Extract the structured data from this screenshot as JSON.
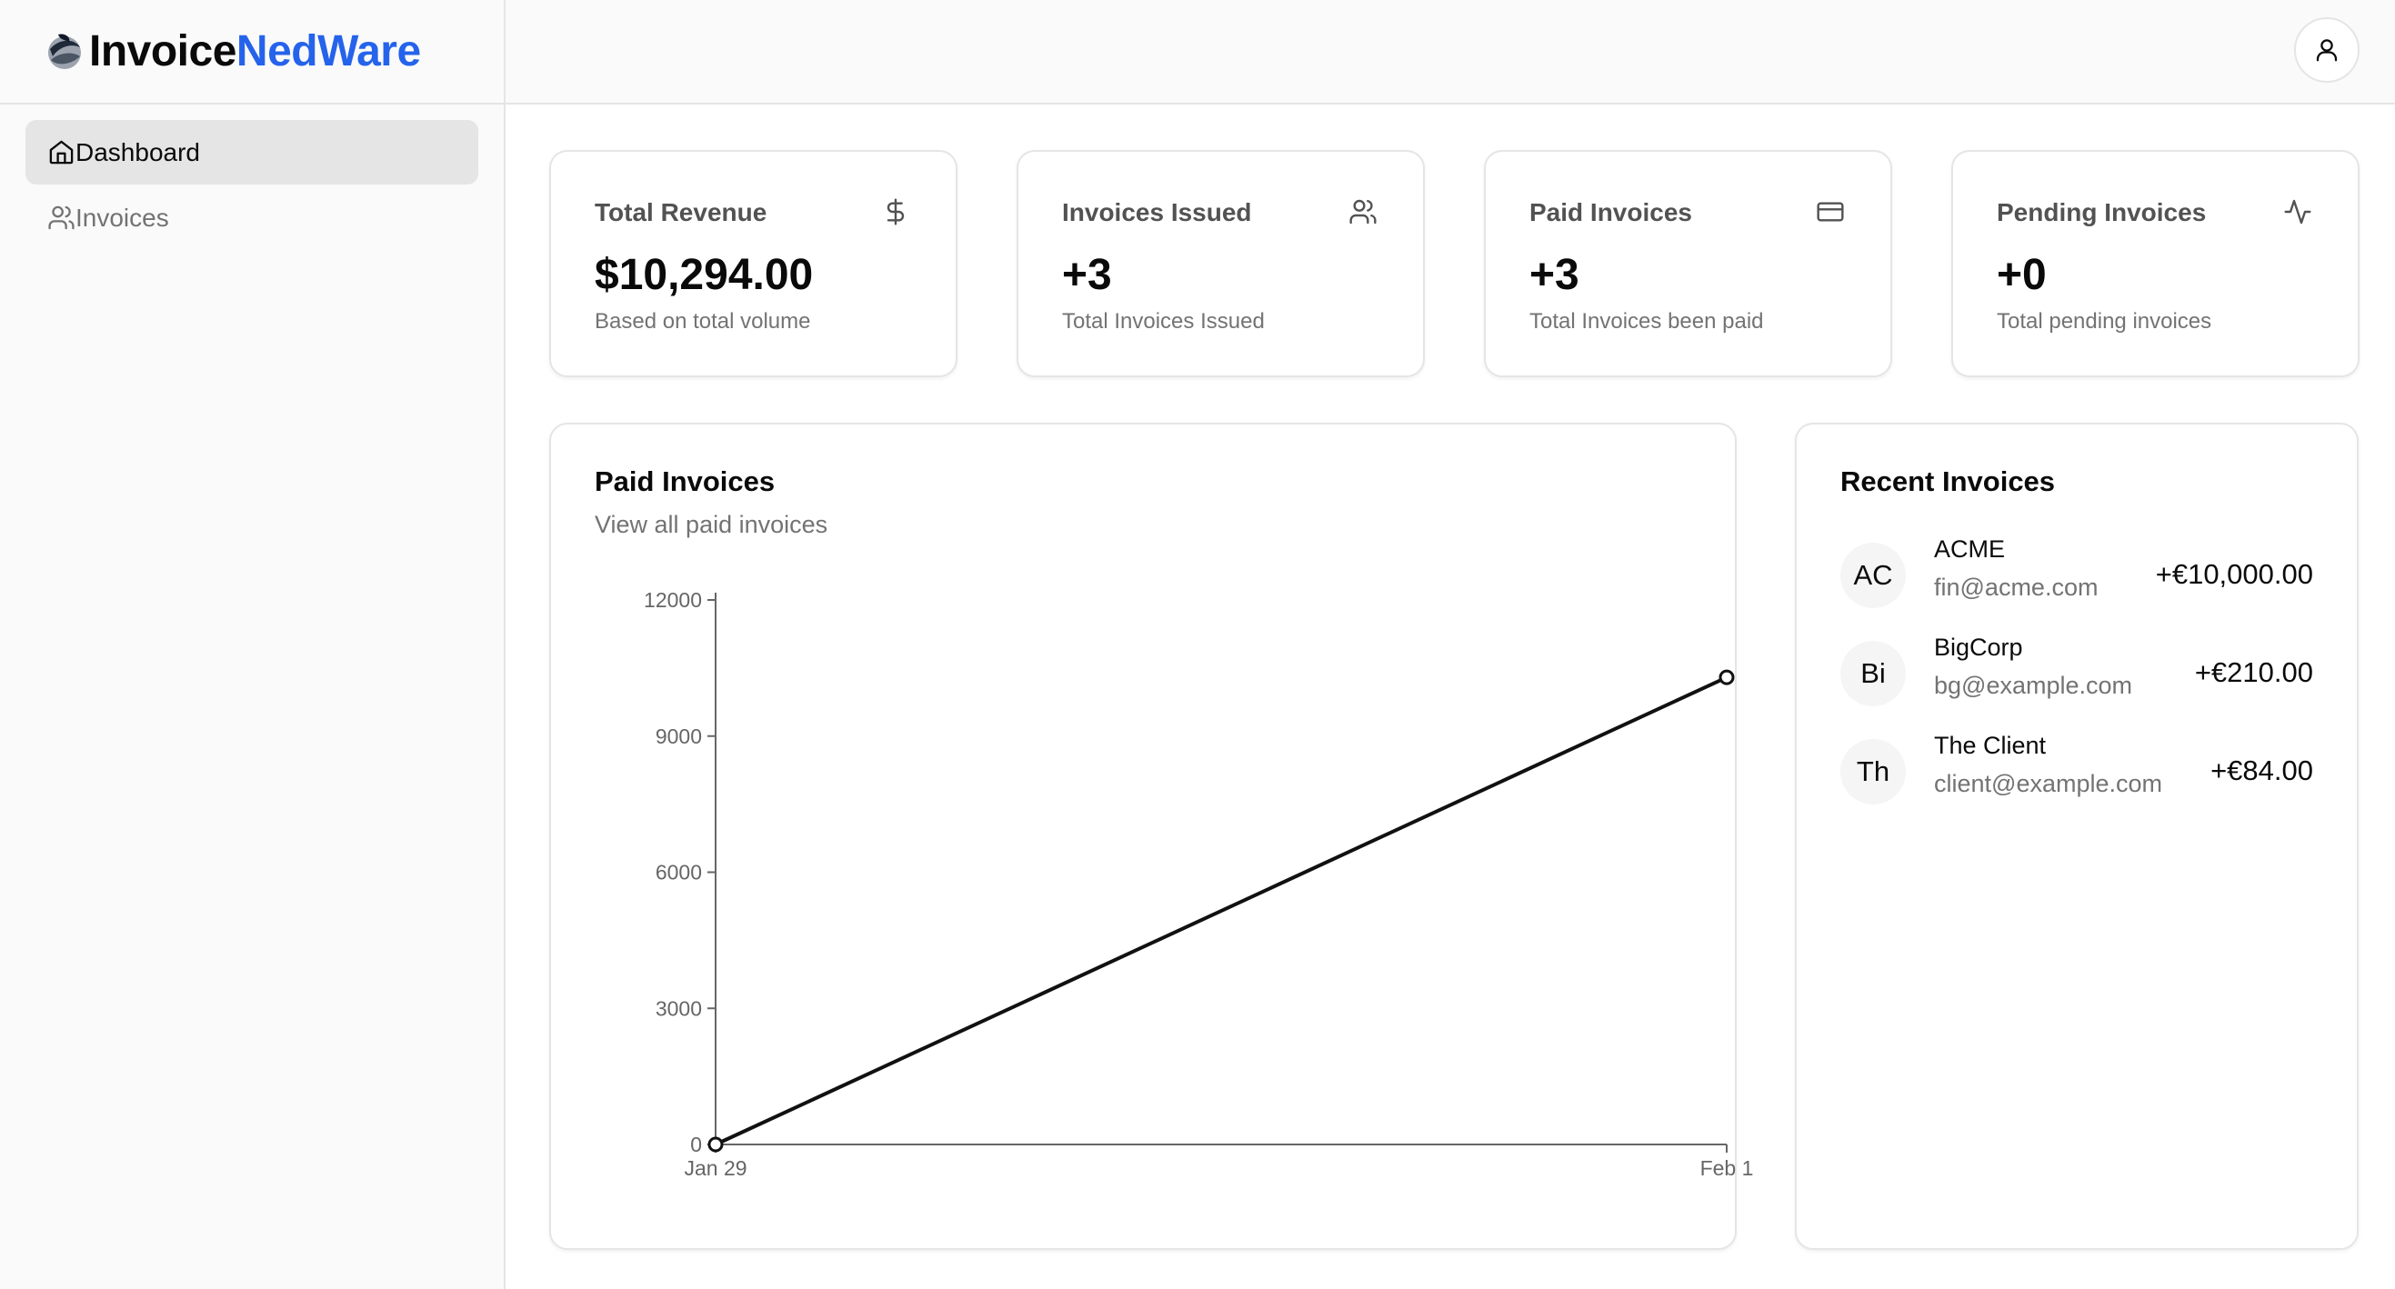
{
  "brand": {
    "name_main": "Invoice",
    "name_accent": "NedWare",
    "accent_color": "#2563eb"
  },
  "sidebar": {
    "items": [
      {
        "label": "Dashboard",
        "icon": "home-icon",
        "active": true
      },
      {
        "label": "Invoices",
        "icon": "users-icon",
        "active": false
      }
    ]
  },
  "header": {
    "user_icon": "user-icon"
  },
  "stats": [
    {
      "title": "Total Revenue",
      "icon": "dollar-icon",
      "value": "$10,294.00",
      "sub": "Based on total volume"
    },
    {
      "title": "Invoices Issued",
      "icon": "users-icon",
      "value": "+3",
      "sub": "Total Invoices Issued"
    },
    {
      "title": "Paid Invoices",
      "icon": "credit-card-icon",
      "value": "+3",
      "sub": "Total Invoices been paid"
    },
    {
      "title": "Pending Invoices",
      "icon": "activity-icon",
      "value": "+0",
      "sub": "Total pending invoices"
    }
  ],
  "paid_panel": {
    "title": "Paid Invoices",
    "subtitle": "View all paid invoices"
  },
  "chart_data": {
    "type": "line",
    "title": "",
    "xlabel": "",
    "ylabel": "",
    "x": [
      "Jan 29",
      "Feb 1"
    ],
    "series": [
      {
        "values": [
          0,
          10294
        ]
      }
    ],
    "ylim": [
      0,
      12000
    ],
    "yticks": [
      0,
      3000,
      6000,
      9000,
      12000
    ],
    "xticks": [
      "Jan 29",
      "Feb 1"
    ],
    "grid": false,
    "line_color": "#111111"
  },
  "recent_panel": {
    "title": "Recent Invoices",
    "items": [
      {
        "initials": "AC",
        "name": "ACME",
        "email": "fin@acme.com",
        "amount": "+€10,000.00"
      },
      {
        "initials": "Bi",
        "name": "BigCorp",
        "email": "bg@example.com",
        "amount": "+€210.00"
      },
      {
        "initials": "Th",
        "name": "The Client",
        "email": "client@example.com",
        "amount": "+€84.00"
      }
    ]
  }
}
